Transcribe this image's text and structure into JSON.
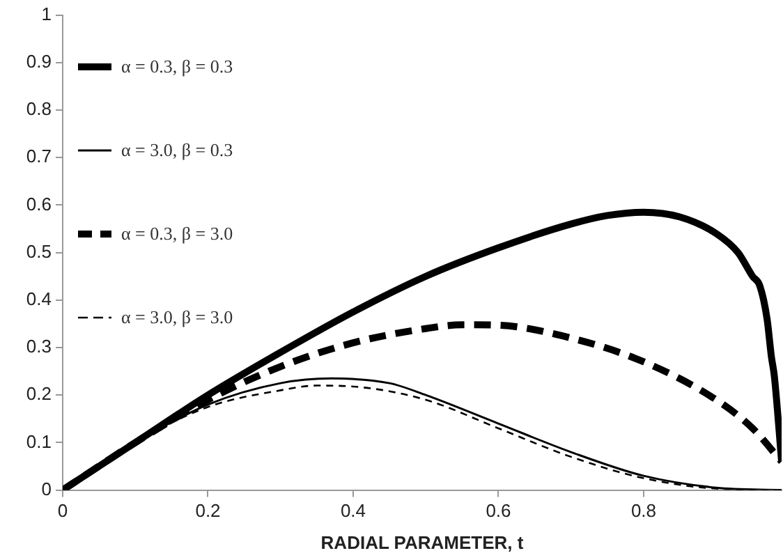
{
  "chart_data": {
    "type": "line",
    "xlabel": "RADIAL PARAMETER, t",
    "xlim": [
      0,
      0.99
    ],
    "xticks": [
      0,
      0.2,
      0.4,
      0.6,
      0.8
    ],
    "ylim": [
      0,
      1
    ],
    "yticks": [
      0,
      0.1,
      0.2,
      0.3,
      0.4,
      0.5,
      0.6,
      0.7,
      0.8,
      0.9,
      1
    ],
    "grid": false,
    "legend": "top left",
    "marker": "none",
    "series": [
      {
        "name": "α = 0.3, β = 0.3",
        "color": "#000000",
        "line_style": "solid",
        "x": [
          0,
          0.1,
          0.2,
          0.3,
          0.4,
          0.5,
          0.6,
          0.7,
          0.75,
          0.8,
          0.85,
          0.9,
          0.93,
          0.95,
          0.96,
          0.97,
          0.976,
          0.98,
          0.99
        ],
        "values": [
          0,
          0.1,
          0.2,
          0.29,
          0.375,
          0.45,
          0.51,
          0.56,
          0.578,
          0.585,
          0.575,
          0.54,
          0.5,
          0.45,
          0.43,
          0.36,
          0.28,
          0.24,
          0.06
        ]
      },
      {
        "name": "α = 3.0, β = 0.3",
        "color": "#000000",
        "line_style": "solid",
        "x": [
          0,
          0.1,
          0.2,
          0.3,
          0.37,
          0.45,
          0.5,
          0.6,
          0.7,
          0.8,
          0.9,
          0.99
        ],
        "values": [
          0,
          0.1,
          0.18,
          0.225,
          0.235,
          0.225,
          0.2,
          0.14,
          0.08,
          0.03,
          0.005,
          0
        ]
      },
      {
        "name": "α = 0.3, β = 3.0",
        "color": "#000000",
        "line_style": "dashed",
        "x": [
          0,
          0.1,
          0.2,
          0.3,
          0.4,
          0.5,
          0.55,
          0.6,
          0.7,
          0.8,
          0.9,
          0.95,
          0.99
        ],
        "values": [
          0,
          0.1,
          0.19,
          0.26,
          0.31,
          0.34,
          0.348,
          0.347,
          0.32,
          0.27,
          0.19,
          0.13,
          0.06
        ]
      },
      {
        "name": "α = 3.0, β = 3.0",
        "color": "#000000",
        "line_style": "dashed",
        "x": [
          0,
          0.1,
          0.2,
          0.3,
          0.35,
          0.4,
          0.5,
          0.6,
          0.7,
          0.8,
          0.9,
          0.99
        ],
        "values": [
          0,
          0.1,
          0.175,
          0.21,
          0.22,
          0.218,
          0.19,
          0.13,
          0.07,
          0.025,
          0.003,
          0
        ]
      }
    ]
  }
}
